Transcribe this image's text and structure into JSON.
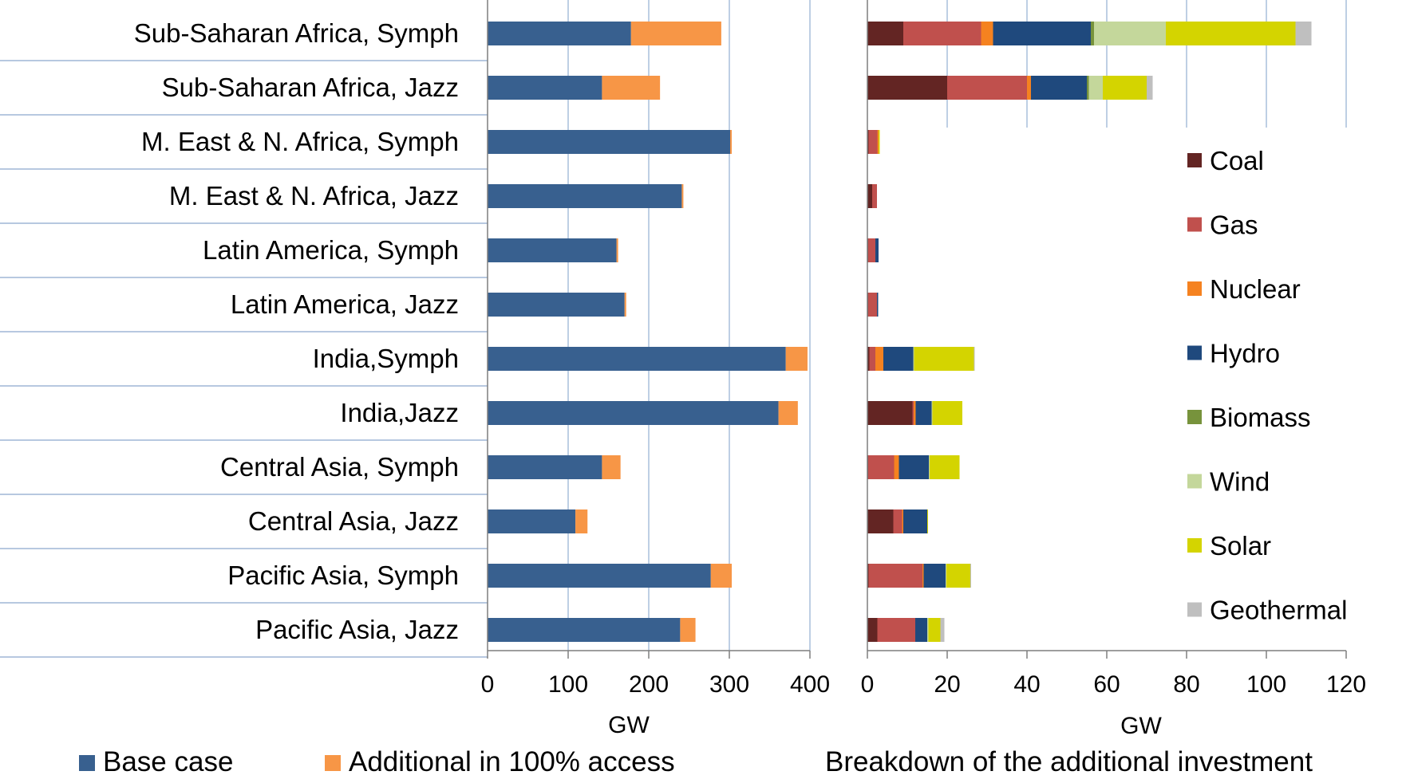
{
  "chart_data": [
    {
      "type": "bar",
      "orientation": "horizontal",
      "stacked": true,
      "categories": [
        "Sub-Saharan Africa, Symph",
        "Sub-Saharan Africa, Jazz",
        "M. East & N. Africa, Symph",
        "M. East & N. Africa, Jazz",
        "Latin America, Symph",
        "Latin America, Jazz",
        "India,Symph",
        "India,Jazz",
        "Central Asia, Symph",
        "Central Asia, Jazz",
        "Pacific Asia, Symph",
        "Pacific Asia, Jazz"
      ],
      "series": [
        {
          "name": "Base case",
          "color": "#38608f",
          "values": [
            178,
            142,
            301,
            241,
            160,
            170,
            370,
            361,
            142,
            109,
            277,
            239
          ]
        },
        {
          "name": "Additional in 100% access",
          "color": "#f79646",
          "values": [
            112,
            72,
            2,
            2,
            2,
            2,
            27,
            24,
            23,
            15,
            26,
            19
          ]
        }
      ],
      "xlabel": "GW",
      "xlim": [
        0,
        400
      ],
      "xticks": [
        "0",
        "100",
        "200",
        "300",
        "400"
      ],
      "grid": true,
      "legend": "bottom"
    },
    {
      "type": "bar",
      "orientation": "horizontal",
      "stacked": true,
      "title": "Breakdown of the additional investment",
      "series": [
        {
          "name": "Coal",
          "color": "#632523",
          "values": [
            9,
            20,
            0.3,
            1.2,
            0.2,
            0.2,
            0.5,
            11.3,
            0.2,
            6.5,
            0.3,
            2.5
          ]
        },
        {
          "name": "Gas",
          "color": "#c0504d",
          "values": [
            19.5,
            20,
            2.2,
            1.2,
            1.8,
            2.2,
            1.5,
            0.3,
            6.5,
            2.2,
            13.5,
            9.5
          ]
        },
        {
          "name": "Nuclear",
          "color": "#f58220",
          "values": [
            3,
            1,
            0.3,
            0,
            0,
            0,
            2,
            0.5,
            1.2,
            0.3,
            0.3,
            0
          ]
        },
        {
          "name": "Hydro",
          "color": "#1f497d",
          "values": [
            24.5,
            14,
            0,
            0,
            0.8,
            0.3,
            7.5,
            4,
            7.5,
            6,
            5.5,
            3
          ]
        },
        {
          "name": "Biomass",
          "color": "#77933c",
          "values": [
            0.8,
            0.5,
            0,
            0,
            0,
            0,
            0,
            0,
            0,
            0,
            0,
            0
          ]
        },
        {
          "name": "Wind",
          "color": "#c4d79b",
          "values": [
            18,
            3.5,
            0,
            0,
            0,
            0,
            0.2,
            0.2,
            0.2,
            0,
            0.2,
            0.3
          ]
        },
        {
          "name": "Solar",
          "color": "#d4d400",
          "values": [
            32.5,
            11,
            0.3,
            0,
            0,
            0,
            15,
            7.5,
            7.5,
            0.2,
            6,
            3
          ]
        },
        {
          "name": "Geothermal",
          "color": "#bfbfbf",
          "values": [
            4,
            1.5,
            0,
            0,
            0,
            0,
            0.2,
            0,
            0,
            0,
            0.2,
            1
          ]
        }
      ],
      "xlabel": "GW",
      "xlim": [
        0,
        120
      ],
      "xticks": [
        "0",
        "20",
        "40",
        "60",
        "80",
        "100",
        "120"
      ],
      "grid": true,
      "legend": "right"
    }
  ]
}
